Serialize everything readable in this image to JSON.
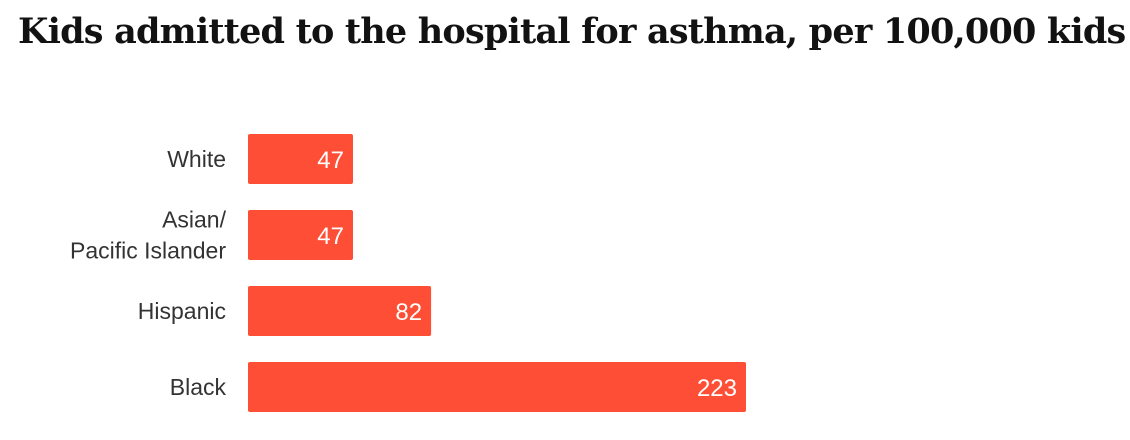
{
  "chart_data": {
    "type": "bar",
    "orientation": "horizontal",
    "title": "Kids admitted to the hospital for asthma, per 100,000 kids",
    "categories": [
      [
        "White"
      ],
      [
        "Asian/",
        "Pacific Islander"
      ],
      [
        "Hispanic"
      ],
      [
        "Black"
      ]
    ],
    "values": [
      47,
      47,
      82,
      223
    ],
    "value_labels": [
      "47",
      "47",
      "82",
      "223"
    ],
    "xlim": [
      0,
      223
    ],
    "grid": false,
    "legend": "none",
    "bar_color": "#ff4e36"
  }
}
